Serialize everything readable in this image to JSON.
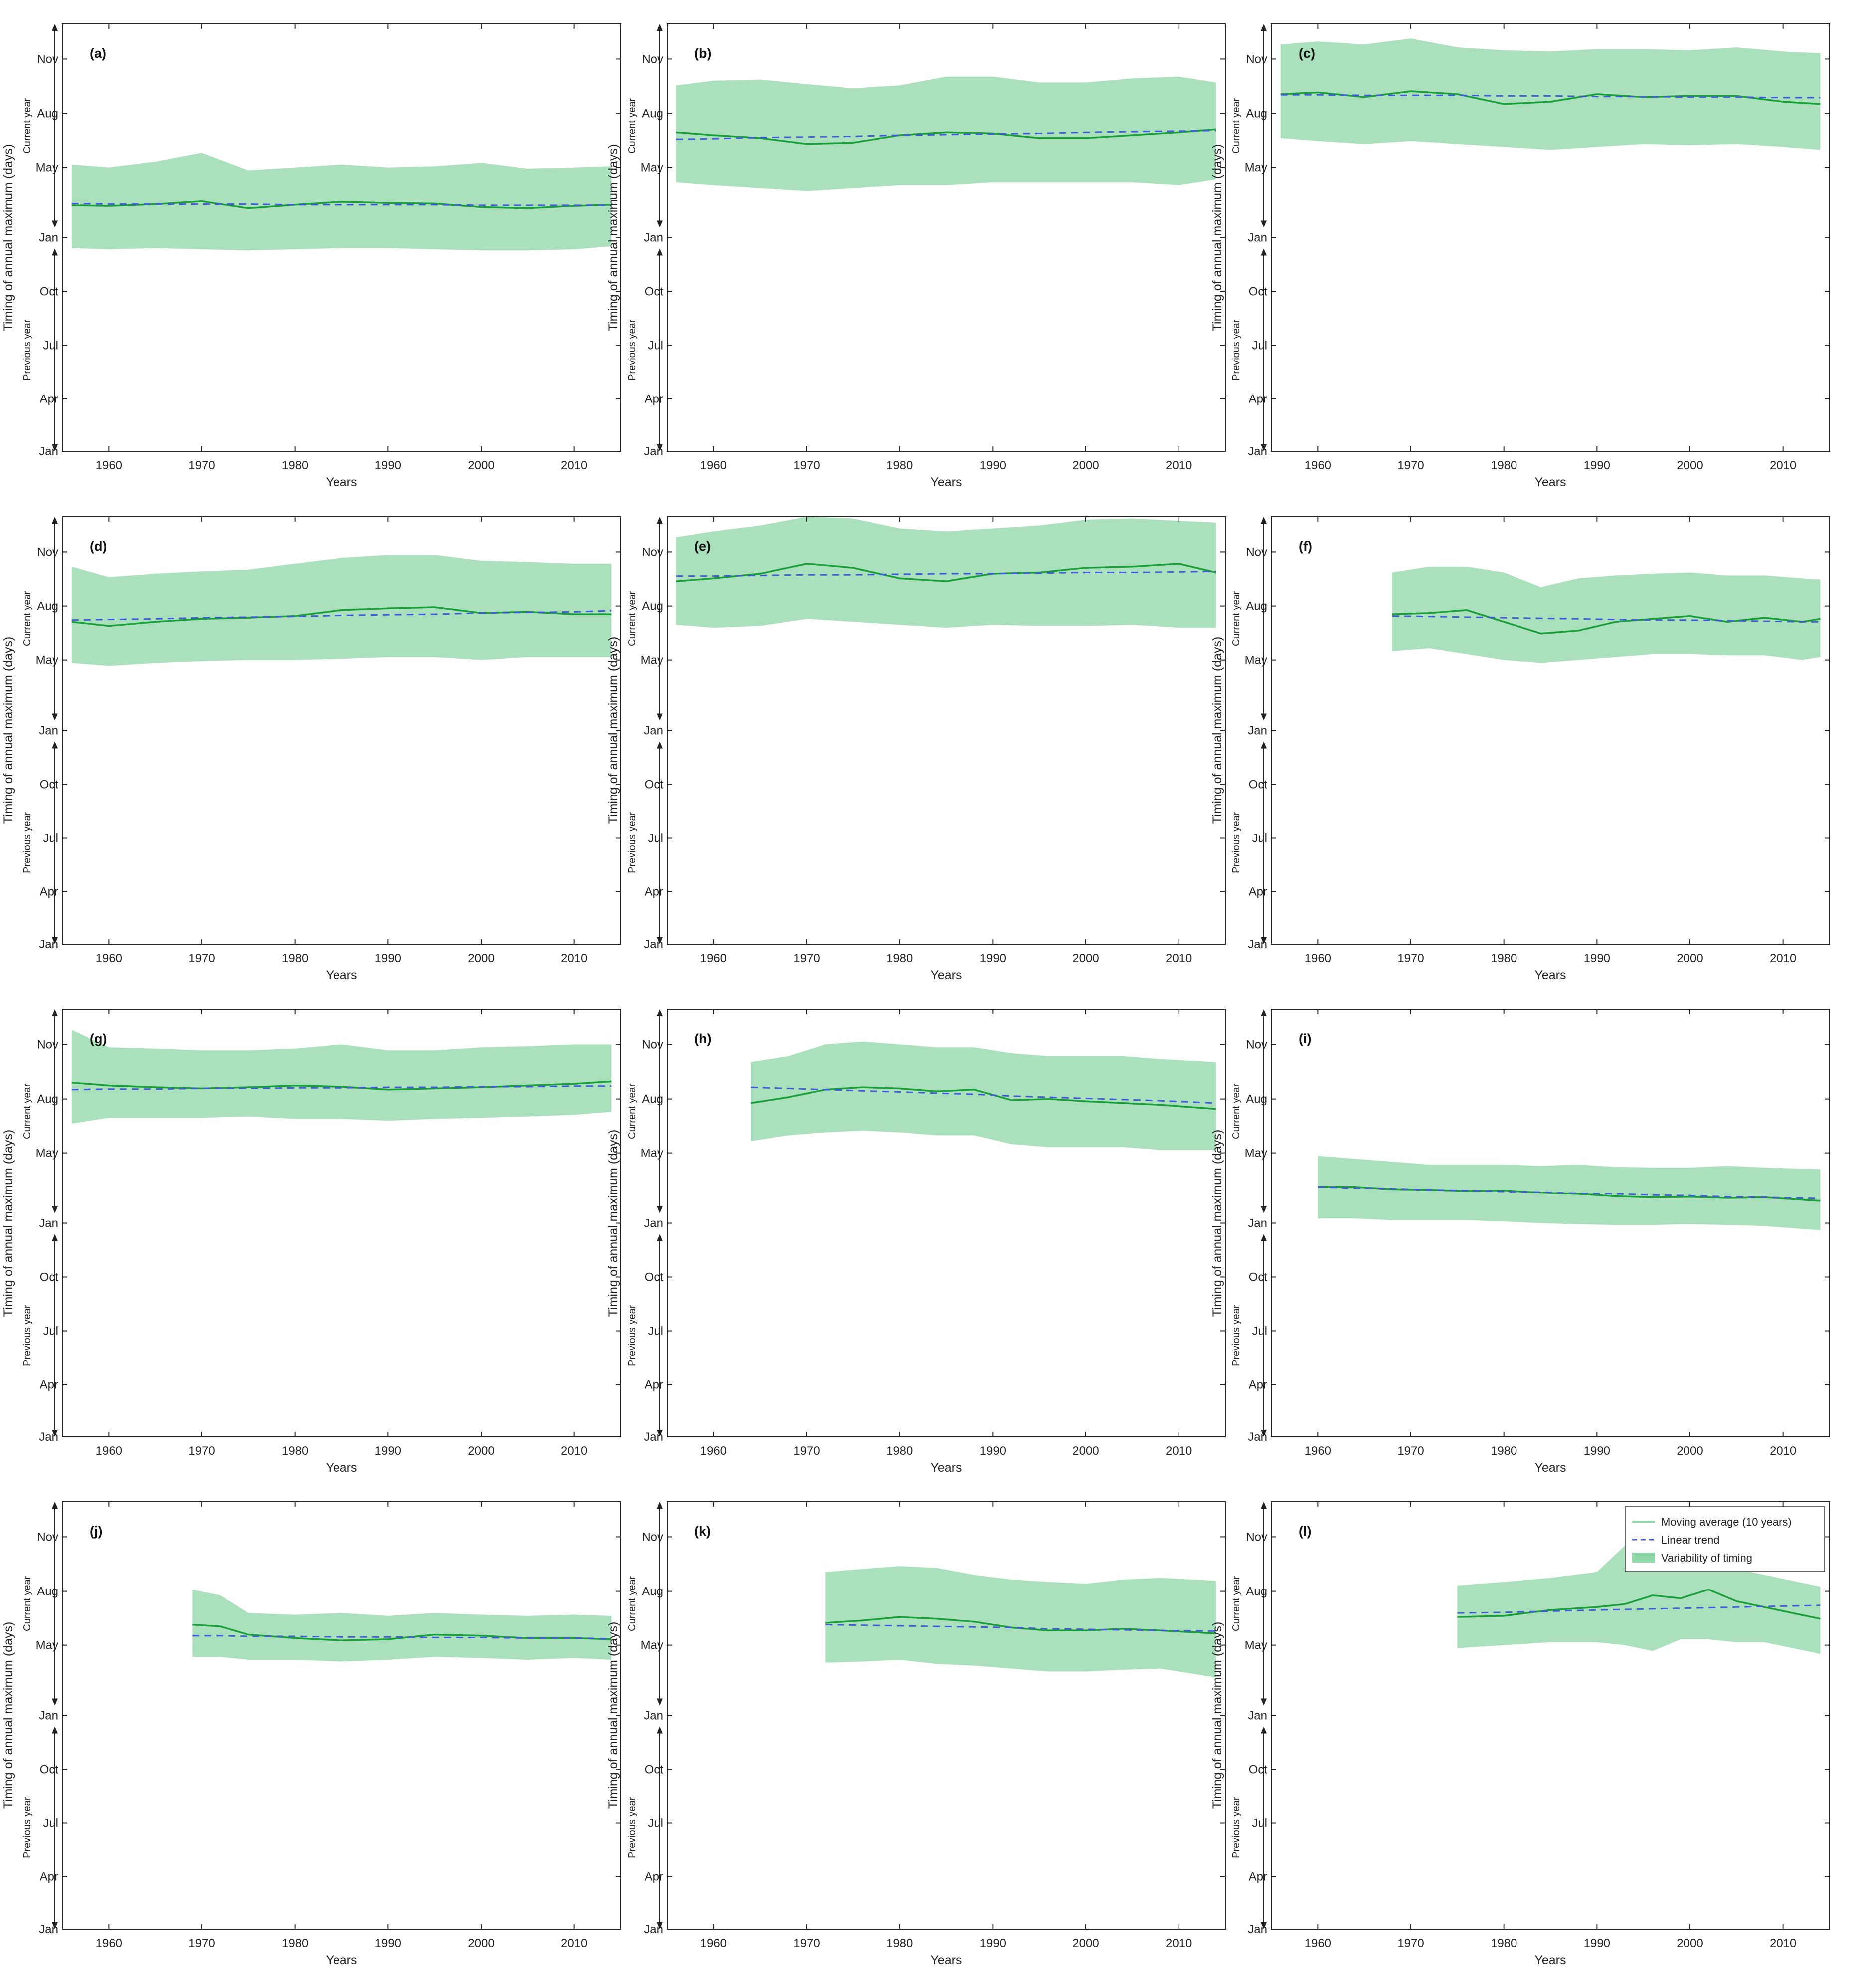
{
  "figure": {
    "y_axis_label": "Timing of annual maximum (days)",
    "current_year_label": "Current year",
    "previous_year_label": "Previous year",
    "x_axis_label": "Years",
    "x_ticks": [
      "1960",
      "1970",
      "1980",
      "1990",
      "2000",
      "2010"
    ],
    "y_ticks": [
      "Jan",
      "Apr",
      "Jul",
      "Oct",
      "Jan",
      "May",
      "Aug",
      "Nov"
    ],
    "colors": {
      "band": "#8fd6a6",
      "moving_average": "#1a9e3a",
      "trend": "#3f5bd6"
    }
  },
  "legend": {
    "moving_average": "Moving average (10 years)",
    "linear_trend": "Linear trend",
    "variability": "Variability of timing"
  },
  "chart_data": [
    {
      "panel": "(a)",
      "type": "line",
      "x_range": [
        1955,
        2015
      ],
      "y_range": [
        "Jan (previous year)",
        "Dec (current year)"
      ],
      "x": [
        1956,
        1960,
        1965,
        1970,
        1975,
        1980,
        1985,
        1990,
        1995,
        2000,
        2005,
        2010,
        2014
      ],
      "series": [
        {
          "name": "Moving average (10 years)",
          "values": [
            55,
            54,
            57,
            62,
            50,
            56,
            61,
            59,
            58,
            52,
            50,
            54,
            56
          ]
        },
        {
          "name": "Linear trend",
          "values": [
            58,
            57,
            57,
            57,
            57,
            56,
            56,
            56,
            56,
            55,
            55,
            55,
            55
          ]
        },
        {
          "name": "Variability of timing",
          "lower": [
            -18,
            -20,
            -18,
            -20,
            -22,
            -20,
            -18,
            -18,
            -20,
            -22,
            -22,
            -20,
            -15
          ],
          "upper": [
            125,
            120,
            130,
            145,
            115,
            120,
            125,
            120,
            122,
            128,
            118,
            120,
            122
          ]
        }
      ]
    },
    {
      "panel": "(b)",
      "type": "line",
      "x_range": [
        1955,
        2015
      ],
      "y_range": [
        "Jan (previous year)",
        "Dec (current year)"
      ],
      "x": [
        1956,
        1960,
        1965,
        1970,
        1975,
        1980,
        1985,
        1990,
        1995,
        2000,
        2005,
        2010,
        2014
      ],
      "series": [
        {
          "name": "Moving average (10 years)",
          "values": [
            180,
            175,
            170,
            160,
            162,
            175,
            180,
            178,
            170,
            170,
            175,
            180,
            185
          ]
        },
        {
          "name": "Linear trend",
          "values": [
            168,
            169,
            171,
            172,
            173,
            175,
            176,
            177,
            178,
            180,
            181,
            182,
            183
          ]
        },
        {
          "name": "Variability of timing",
          "lower": [
            95,
            90,
            85,
            80,
            85,
            90,
            90,
            95,
            95,
            95,
            95,
            90,
            100
          ],
          "upper": [
            260,
            268,
            270,
            262,
            255,
            260,
            275,
            275,
            265,
            265,
            272,
            275,
            265
          ]
        }
      ]
    },
    {
      "panel": "(c)",
      "type": "line",
      "x_range": [
        1955,
        2015
      ],
      "y_range": [
        "Jan (previous year)",
        "Dec (current year)"
      ],
      "x": [
        1956,
        1960,
        1965,
        1970,
        1975,
        1980,
        1985,
        1990,
        1995,
        2000,
        2005,
        2010,
        2014
      ],
      "series": [
        {
          "name": "Moving average (10 years)",
          "values": [
            245,
            248,
            240,
            250,
            245,
            228,
            232,
            245,
            240,
            242,
            242,
            232,
            228
          ]
        },
        {
          "name": "Linear trend",
          "values": [
            244,
            244,
            243,
            243,
            243,
            242,
            242,
            241,
            241,
            240,
            240,
            239,
            239
          ]
        },
        {
          "name": "Variability of timing",
          "lower": [
            170,
            165,
            160,
            165,
            160,
            155,
            150,
            155,
            160,
            158,
            160,
            155,
            150
          ],
          "upper": [
            330,
            335,
            330,
            340,
            325,
            320,
            318,
            322,
            322,
            320,
            325,
            318,
            315
          ]
        }
      ]
    },
    {
      "panel": "(d)",
      "type": "line",
      "x_range": [
        1955,
        2015
      ],
      "y_range": [
        "Jan (previous year)",
        "Dec (current year)"
      ],
      "x": [
        1956,
        1960,
        1965,
        1970,
        1975,
        1980,
        1985,
        1990,
        1995,
        2000,
        2005,
        2010,
        2014
      ],
      "series": [
        {
          "name": "Moving average (10 years)",
          "values": [
            185,
            178,
            185,
            190,
            192,
            195,
            205,
            208,
            210,
            200,
            202,
            198,
            198
          ]
        },
        {
          "name": "Linear trend",
          "values": [
            188,
            189,
            190,
            192,
            193,
            194,
            196,
            197,
            198,
            200,
            201,
            202,
            204
          ]
        },
        {
          "name": "Variability of timing",
          "lower": [
            115,
            110,
            115,
            118,
            120,
            120,
            122,
            125,
            125,
            120,
            125,
            125,
            125
          ],
          "upper": [
            280,
            262,
            268,
            272,
            275,
            285,
            295,
            300,
            300,
            290,
            288,
            285,
            285
          ]
        }
      ]
    },
    {
      "panel": "(e)",
      "type": "line",
      "x_range": [
        1955,
        2015
      ],
      "y_range": [
        "Jan (previous year)",
        "Dec (current year)"
      ],
      "x": [
        1956,
        1960,
        1965,
        1970,
        1975,
        1980,
        1985,
        1990,
        1995,
        2000,
        2005,
        2010,
        2014
      ],
      "series": [
        {
          "name": "Moving average (10 years)",
          "values": [
            255,
            260,
            268,
            285,
            278,
            260,
            255,
            268,
            270,
            278,
            280,
            285,
            270
          ]
        },
        {
          "name": "Linear trend",
          "values": [
            264,
            264,
            265,
            266,
            266,
            267,
            268,
            268,
            269,
            270,
            270,
            271,
            272
          ]
        },
        {
          "name": "Variability of timing",
          "lower": [
            180,
            175,
            178,
            190,
            185,
            180,
            175,
            180,
            178,
            178,
            180,
            175,
            175
          ],
          "upper": [
            330,
            340,
            350,
            365,
            362,
            345,
            340,
            345,
            350,
            360,
            362,
            358,
            355
          ]
        }
      ]
    },
    {
      "panel": "(f)",
      "type": "line",
      "x_range": [
        1955,
        2015
      ],
      "y_range": [
        "Jan (previous year)",
        "Dec (current year)"
      ],
      "x": [
        1968,
        1972,
        1976,
        1980,
        1984,
        1988,
        1992,
        1996,
        2000,
        2004,
        2008,
        2012,
        2014
      ],
      "series": [
        {
          "name": "Moving average (10 years)",
          "values": [
            198,
            200,
            205,
            185,
            165,
            170,
            185,
            190,
            195,
            185,
            192,
            185,
            190
          ]
        },
        {
          "name": "Linear trend",
          "values": [
            195,
            194,
            193,
            192,
            191,
            190,
            189,
            188,
            188,
            187,
            186,
            185,
            185
          ]
        },
        {
          "name": "Variability of timing",
          "lower": [
            135,
            140,
            130,
            120,
            115,
            120,
            125,
            130,
            130,
            128,
            128,
            120,
            125
          ],
          "upper": [
            270,
            280,
            280,
            270,
            245,
            260,
            265,
            268,
            270,
            265,
            265,
            260,
            258
          ]
        }
      ]
    },
    {
      "panel": "(g)",
      "type": "line",
      "x_range": [
        1955,
        2015
      ],
      "y_range": [
        "Jan (previous year)",
        "Dec (current year)"
      ],
      "x": [
        1956,
        1960,
        1965,
        1970,
        1975,
        1980,
        1985,
        1990,
        1995,
        2000,
        2005,
        2010,
        2014
      ],
      "series": [
        {
          "name": "Moving average (10 years)",
          "values": [
            240,
            235,
            232,
            230,
            232,
            235,
            233,
            228,
            230,
            232,
            235,
            238,
            242
          ]
        },
        {
          "name": "Linear trend",
          "values": [
            228,
            229,
            229,
            230,
            230,
            231,
            231,
            232,
            232,
            233,
            233,
            234,
            234
          ]
        },
        {
          "name": "Variability of timing",
          "lower": [
            170,
            180,
            180,
            180,
            182,
            178,
            178,
            175,
            178,
            180,
            182,
            185,
            190
          ],
          "upper": [
            330,
            300,
            298,
            295,
            295,
            298,
            305,
            295,
            295,
            300,
            302,
            305,
            305
          ]
        }
      ]
    },
    {
      "panel": "(h)",
      "type": "line",
      "x_range": [
        1955,
        2015
      ],
      "y_range": [
        "Jan (previous year)",
        "Dec (current year)"
      ],
      "x": [
        1964,
        1968,
        1972,
        1976,
        1980,
        1984,
        1988,
        1992,
        1996,
        2000,
        2004,
        2008,
        2014
      ],
      "series": [
        {
          "name": "Moving average (10 years)",
          "values": [
            205,
            215,
            228,
            232,
            230,
            225,
            228,
            210,
            212,
            208,
            205,
            202,
            195
          ]
        },
        {
          "name": "Linear trend",
          "values": [
            232,
            230,
            228,
            226,
            224,
            222,
            220,
            217,
            215,
            213,
            211,
            209,
            205
          ]
        },
        {
          "name": "Variability of timing",
          "lower": [
            140,
            150,
            155,
            158,
            155,
            150,
            150,
            135,
            130,
            130,
            130,
            125,
            125
          ],
          "upper": [
            275,
            285,
            305,
            310,
            305,
            300,
            300,
            290,
            285,
            285,
            285,
            280,
            275
          ]
        }
      ]
    },
    {
      "panel": "(i)",
      "type": "line",
      "x_range": [
        1955,
        2015
      ],
      "y_range": [
        "Jan (previous year)",
        "Dec (current year)"
      ],
      "x": [
        1960,
        1964,
        1968,
        1972,
        1976,
        1980,
        1984,
        1988,
        1992,
        1996,
        2000,
        2004,
        2008,
        2014
      ],
      "series": [
        {
          "name": "Moving average (10 years)",
          "values": [
            62,
            62,
            58,
            57,
            55,
            56,
            52,
            50,
            46,
            44,
            45,
            43,
            44,
            38
          ]
        },
        {
          "name": "Linear trend",
          "values": [
            62,
            60,
            59,
            57,
            56,
            54,
            53,
            51,
            50,
            48,
            47,
            45,
            44,
            42
          ]
        },
        {
          "name": "Variability of timing",
          "lower": [
            8,
            8,
            5,
            5,
            5,
            3,
            0,
            -2,
            -3,
            -3,
            -2,
            -3,
            -5,
            -12
          ],
          "upper": [
            115,
            110,
            105,
            100,
            100,
            100,
            98,
            100,
            96,
            95,
            95,
            98,
            95,
            92
          ]
        }
      ]
    },
    {
      "panel": "(j)",
      "type": "line",
      "x_range": [
        1955,
        2015
      ],
      "y_range": [
        "Jan (previous year)",
        "Dec (current year)"
      ],
      "x": [
        1969,
        1972,
        1975,
        1980,
        1985,
        1990,
        1995,
        2000,
        2005,
        2010,
        2014
      ],
      "series": [
        {
          "name": "Moving average (10 years)",
          "values": [
            155,
            152,
            138,
            132,
            128,
            130,
            138,
            136,
            132,
            132,
            130
          ]
        },
        {
          "name": "Linear trend",
          "values": [
            136,
            136,
            135,
            135,
            134,
            134,
            133,
            133,
            132,
            132,
            131
          ]
        },
        {
          "name": "Variability of timing",
          "lower": [
            100,
            100,
            95,
            95,
            92,
            95,
            100,
            98,
            95,
            98,
            95
          ],
          "upper": [
            215,
            205,
            175,
            172,
            175,
            170,
            175,
            172,
            170,
            172,
            170
          ]
        }
      ]
    },
    {
      "panel": "(k)",
      "type": "line",
      "x_range": [
        1955,
        2015
      ],
      "y_range": [
        "Jan (previous year)",
        "Dec (current year)"
      ],
      "x": [
        1972,
        1976,
        1980,
        1984,
        1988,
        1992,
        1996,
        2000,
        2004,
        2008,
        2014
      ],
      "series": [
        {
          "name": "Moving average (10 years)",
          "values": [
            158,
            162,
            168,
            165,
            160,
            150,
            145,
            145,
            148,
            145,
            140
          ]
        },
        {
          "name": "Linear trend",
          "values": [
            155,
            154,
            153,
            152,
            151,
            150,
            148,
            147,
            146,
            145,
            144
          ]
        },
        {
          "name": "Variability of timing",
          "lower": [
            90,
            92,
            95,
            88,
            85,
            80,
            75,
            75,
            78,
            80,
            65
          ],
          "upper": [
            245,
            250,
            255,
            252,
            240,
            232,
            228,
            225,
            232,
            235,
            230
          ]
        }
      ]
    },
    {
      "panel": "(l)",
      "type": "line",
      "x_range": [
        1955,
        2015
      ],
      "y_range": [
        "Jan (previous year)",
        "Dec (current year)"
      ],
      "x": [
        1975,
        1980,
        1985,
        1990,
        1993,
        1996,
        1999,
        2002,
        2005,
        2008,
        2011,
        2014
      ],
      "series": [
        {
          "name": "Moving average (10 years)",
          "values": [
            168,
            170,
            180,
            185,
            190,
            205,
            200,
            215,
            195,
            185,
            175,
            165
          ]
        },
        {
          "name": "Linear trend",
          "values": [
            175,
            176,
            178,
            180,
            181,
            182,
            183,
            184,
            185,
            186,
            187,
            188
          ]
        },
        {
          "name": "Variability of timing",
          "lower": [
            115,
            120,
            125,
            125,
            120,
            110,
            130,
            130,
            125,
            125,
            115,
            105
          ],
          "upper": [
            222,
            228,
            235,
            245,
            290,
            285,
            270,
            295,
            250,
            240,
            230,
            220
          ]
        }
      ]
    }
  ]
}
